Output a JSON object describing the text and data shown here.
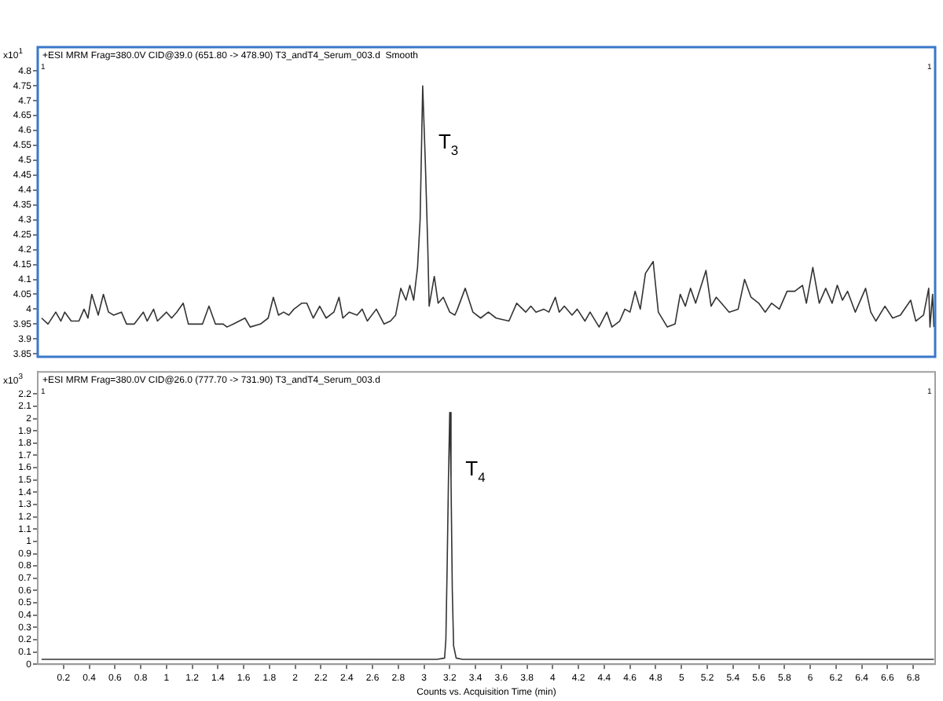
{
  "chart_data": [
    {
      "type": "line",
      "title": "+ESI MRM Frag=380.0V CID@39.0 (651.80 -> 478.90) T3_andT4_Serum_003.d  Smooth",
      "ylabel": "x10$^{1}$",
      "color": "#333333",
      "tick_labels": "y",
      "annotations": [
        "1",
        "1",
        {
          "text": "T$_{3}$",
          "x": 2.99,
          "y": 4.75
        }
      ],
      "xlim": [
        0,
        6.97
      ],
      "ylim": [
        3.84,
        4.88
      ],
      "yticks": [
        3.85,
        3.9,
        3.95,
        4,
        4.05,
        4.1,
        4.15,
        4.2,
        4.25,
        4.3,
        4.35,
        4.4,
        4.45,
        4.5,
        4.55,
        4.6,
        4.65,
        4.7,
        4.75,
        4.8
      ],
      "x": [
        0.03,
        0.08,
        0.14,
        0.18,
        0.21,
        0.26,
        0.32,
        0.36,
        0.39,
        0.42,
        0.47,
        0.51,
        0.55,
        0.59,
        0.65,
        0.69,
        0.75,
        0.82,
        0.85,
        0.9,
        0.93,
        1.0,
        1.04,
        1.08,
        1.13,
        1.17,
        1.24,
        1.28,
        1.33,
        1.38,
        1.44,
        1.47,
        1.52,
        1.61,
        1.65,
        1.73,
        1.79,
        1.83,
        1.87,
        1.91,
        1.95,
        1.99,
        2.05,
        2.09,
        2.14,
        2.19,
        2.24,
        2.3,
        2.34,
        2.37,
        2.42,
        2.48,
        2.52,
        2.56,
        2.63,
        2.69,
        2.74,
        2.78,
        2.82,
        2.86,
        2.89,
        2.92,
        2.95,
        2.97,
        2.99,
        3.01,
        3.03,
        3.04,
        3.08,
        3.11,
        3.15,
        3.2,
        3.24,
        3.26,
        3.32,
        3.38,
        3.44,
        3.5,
        3.56,
        3.66,
        3.72,
        3.79,
        3.83,
        3.87,
        3.93,
        3.97,
        4.02,
        4.05,
        4.09,
        4.15,
        4.19,
        4.25,
        4.29,
        4.36,
        4.42,
        4.46,
        4.52,
        4.56,
        4.6,
        4.64,
        4.68,
        4.72,
        4.78,
        4.82,
        4.89,
        4.95,
        4.99,
        5.03,
        5.07,
        5.11,
        5.19,
        5.23,
        5.27,
        5.31,
        5.37,
        5.44,
        5.49,
        5.54,
        5.6,
        5.65,
        5.7,
        5.76,
        5.82,
        5.88,
        5.94,
        5.97,
        6.02,
        6.07,
        6.12,
        6.17,
        6.21,
        6.25,
        6.29,
        6.35,
        6.43,
        6.47,
        6.51,
        6.58,
        6.64,
        6.7,
        6.78,
        6.82,
        6.88,
        6.92,
        6.93,
        6.95,
        6.96
      ],
      "values": [
        3.97,
        3.95,
        3.99,
        3.96,
        3.99,
        3.96,
        3.96,
        4.0,
        3.97,
        4.05,
        3.98,
        4.05,
        3.99,
        3.98,
        3.99,
        3.95,
        3.95,
        3.99,
        3.96,
        4.0,
        3.96,
        3.99,
        3.97,
        3.99,
        4.02,
        3.95,
        3.95,
        3.95,
        4.01,
        3.95,
        3.95,
        3.94,
        3.95,
        3.97,
        3.94,
        3.95,
        3.97,
        4.04,
        3.98,
        3.99,
        3.98,
        4.0,
        4.02,
        4.02,
        3.97,
        4.01,
        3.97,
        3.99,
        4.04,
        3.97,
        3.99,
        3.98,
        4.0,
        3.96,
        4.0,
        3.95,
        3.96,
        3.98,
        4.07,
        4.03,
        4.08,
        4.03,
        4.14,
        4.3,
        4.75,
        4.5,
        4.2,
        4.01,
        4.11,
        4.02,
        4.04,
        3.99,
        3.98,
        4.0,
        4.07,
        3.99,
        3.97,
        3.99,
        3.97,
        3.96,
        4.02,
        3.99,
        4.01,
        3.99,
        4.0,
        3.99,
        4.04,
        3.99,
        4.01,
        3.98,
        4.0,
        3.96,
        3.99,
        3.94,
        3.99,
        3.94,
        3.96,
        4.0,
        3.99,
        4.06,
        4.0,
        4.12,
        4.16,
        3.99,
        3.94,
        3.95,
        4.05,
        4.01,
        4.07,
        4.02,
        4.13,
        4.01,
        4.04,
        4.02,
        3.99,
        4.0,
        4.1,
        4.04,
        4.02,
        3.99,
        4.02,
        4.0,
        4.06,
        4.06,
        4.08,
        4.02,
        4.14,
        4.02,
        4.07,
        4.02,
        4.08,
        4.03,
        4.06,
        3.99,
        4.07,
        3.99,
        3.96,
        4.01,
        3.97,
        3.98,
        4.03,
        3.96,
        3.98,
        4.07,
        3.94,
        4.05,
        3.94
      ]
    },
    {
      "type": "line",
      "title": "+ESI MRM Frag=380.0V CID@26.0 (777.70 -> 731.90) T3_andT4_Serum_003.d",
      "ylabel": "x10$^{3}$",
      "xlabel": "Counts vs. Acquisition Time (min)",
      "color": "#333333",
      "annotations": [
        "1",
        "1",
        {
          "text": "T$_{4}$",
          "x": 3.2,
          "y": 2.05
        }
      ],
      "xlim": [
        0,
        6.97
      ],
      "ylim": [
        0,
        2.38
      ],
      "xticks": [
        0.2,
        0.4,
        0.6,
        0.8,
        1,
        1.2,
        1.4,
        1.6,
        1.8,
        2,
        2.2,
        2.4,
        2.6,
        2.8,
        3,
        3.2,
        3.4,
        3.6,
        3.8,
        4,
        4.2,
        4.4,
        4.6,
        4.8,
        5,
        5.2,
        5.4,
        5.6,
        5.8,
        6,
        6.2,
        6.4,
        6.6,
        6.8
      ],
      "yticks": [
        0,
        0.1,
        0.2,
        0.3,
        0.4,
        0.5,
        0.6,
        0.7,
        0.8,
        0.9,
        1,
        1.1,
        1.2,
        1.3,
        1.4,
        1.5,
        1.6,
        1.7,
        1.8,
        1.9,
        2,
        2.1,
        2.2
      ],
      "x": [
        0.03,
        1.0,
        2.0,
        2.9,
        3.1,
        3.16,
        3.17,
        3.18,
        3.19,
        3.2,
        3.21,
        3.22,
        3.23,
        3.25,
        3.3,
        4.0,
        5.0,
        6.0,
        6.96
      ],
      "values": [
        0.04,
        0.04,
        0.04,
        0.04,
        0.04,
        0.05,
        0.2,
        0.8,
        1.5,
        2.05,
        1.5,
        0.6,
        0.15,
        0.05,
        0.04,
        0.04,
        0.04,
        0.04,
        0.04
      ]
    }
  ]
}
